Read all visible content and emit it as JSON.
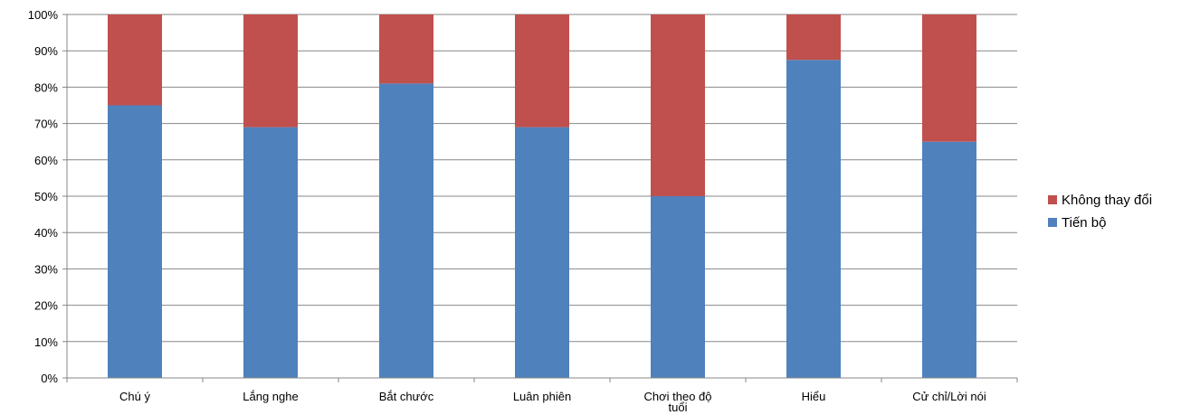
{
  "chart_data": {
    "type": "bar",
    "stacked": "percent",
    "categories": [
      "Chú ý",
      "Lắng nghe",
      "Bắt chước",
      "Luân phiên",
      "Chơi theo độ tuổi",
      "Hiểu",
      "Cử chỉ/Lời nói"
    ],
    "series": [
      {
        "name": "Tiến bộ",
        "color": "#4f81bd",
        "values": [
          75,
          69,
          81,
          69,
          50,
          87.5,
          65
        ]
      },
      {
        "name": "Không thay đổi",
        "color": "#c0504d",
        "values": [
          25,
          31,
          19,
          31,
          50,
          12.5,
          35
        ]
      }
    ],
    "y_ticks": [
      "0%",
      "10%",
      "20%",
      "30%",
      "40%",
      "50%",
      "60%",
      "70%",
      "80%",
      "90%",
      "100%"
    ],
    "ylim": [
      0,
      100
    ],
    "grid": true,
    "legend": {
      "placement": "right",
      "order": [
        "Không thay đổi",
        "Tiến bộ"
      ]
    }
  }
}
